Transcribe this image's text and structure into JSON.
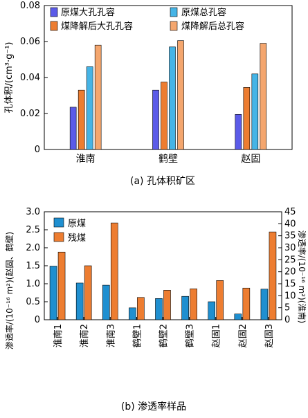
{
  "colors": {
    "raw_macro": "#5b5be8",
    "raw_total": "#45b4e6",
    "degraded_macro": "#ed7d31",
    "degraded_total": "#f4a66e",
    "raw_blue": "#1f8fd0",
    "residual_orange": "#ed7d31"
  },
  "chart_data": [
    {
      "type": "bar",
      "caption": "(a) 孔体积矿区",
      "ylabel": "孔体积/(cm³·g⁻¹)",
      "categories": [
        "淮南",
        "鹤壁",
        "赵固"
      ],
      "ylim": [
        0,
        0.08
      ],
      "yticks": [
        "0",
        "0.02",
        "0.04",
        "0.06",
        "0.08"
      ],
      "legend_position": "top",
      "series": [
        {
          "name": "原煤大孔孔容",
          "values": [
            0.0235,
            0.033,
            0.0195
          ]
        },
        {
          "name": "煤降解后大孔孔容",
          "values": [
            0.033,
            0.0375,
            0.0345
          ]
        },
        {
          "name": "原煤总孔容",
          "values": [
            0.046,
            0.057,
            0.042
          ]
        },
        {
          "name": "煤降解后总孔容",
          "values": [
            0.058,
            0.0605,
            0.059
          ]
        }
      ]
    },
    {
      "type": "bar",
      "caption": "(b) 渗透率样品",
      "ylabel_left": "渗透率/(10⁻¹⁶ m²)(赵固、鹤壁)",
      "ylabel_right": "渗透率/(10⁻¹⁶ m²)(淮南)",
      "categories": [
        "淮南1",
        "淮南2",
        "淮南3",
        "鹤壁1",
        "鹤壁2",
        "鹤壁3",
        "赵固1",
        "赵固2",
        "赵固3"
      ],
      "ylim_left": [
        0,
        3.0
      ],
      "ylim_right": [
        0,
        45
      ],
      "yticks_left": [
        "0",
        "0.5",
        "1.0",
        "1.5",
        "2.0",
        "2.5",
        "3.0"
      ],
      "yticks_right": [
        "0",
        "5",
        "10",
        "15",
        "20",
        "25",
        "30",
        "35",
        "40",
        "45"
      ],
      "legend_position": "top-left",
      "series": [
        {
          "name": "原煤",
          "values": [
            1.49,
            1.02,
            0.96,
            0.33,
            0.59,
            0.65,
            0.5,
            0.16,
            0.85
          ]
        },
        {
          "name": "残煤",
          "values": [
            1.88,
            1.5,
            2.69,
            0.62,
            0.82,
            0.86,
            1.09,
            0.88,
            2.44
          ]
        }
      ]
    }
  ]
}
